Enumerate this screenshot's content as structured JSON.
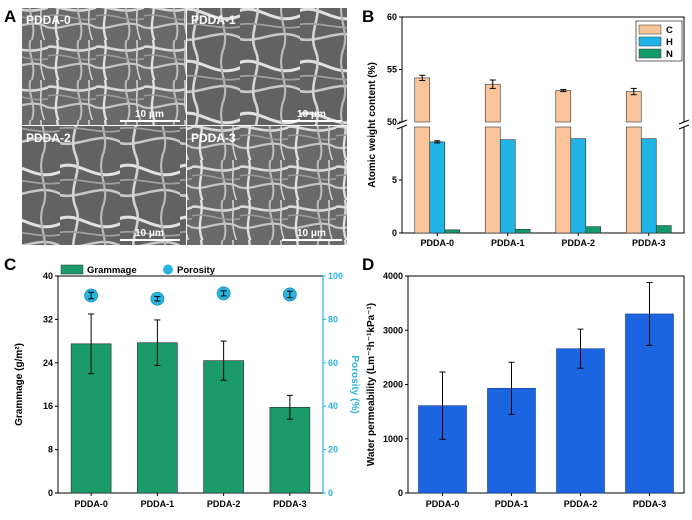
{
  "panels": {
    "A": "A",
    "B": "B",
    "C": "C",
    "D": "D"
  },
  "sem": {
    "images": [
      {
        "label": "PDDA-0",
        "scale": "10 μm"
      },
      {
        "label": "PDDA-1",
        "scale": "10 μm"
      },
      {
        "label": "PDDA-2",
        "scale": "10 μm"
      },
      {
        "label": "PDDA-3",
        "scale": "10 μm"
      }
    ]
  },
  "chart_data": [
    {
      "panel": "B",
      "type": "bar",
      "categories": [
        "PDDA-0",
        "PDDA-1",
        "PDDA-2",
        "PDDA-3"
      ],
      "ylabel": "Atomic weight content (%)",
      "axis_break": true,
      "ylim_lower": [
        0,
        10
      ],
      "ylim_upper": [
        50,
        60
      ],
      "yticks_lower": [
        "0",
        "5"
      ],
      "yticks_upper": [
        "50",
        "55",
        "60"
      ],
      "series": [
        {
          "name": "C",
          "color": "#f9c49a",
          "values": [
            54.2,
            53.6,
            53.0,
            52.9
          ],
          "errors": [
            0.25,
            0.4,
            0.1,
            0.3
          ]
        },
        {
          "name": "H",
          "color": "#1fb3e6",
          "values": [
            8.6,
            8.8,
            8.9,
            8.9
          ],
          "errors": [
            0.1,
            0.0,
            0.0,
            0.0
          ]
        },
        {
          "name": "N",
          "color": "#129a6a",
          "values": [
            0.3,
            0.35,
            0.6,
            0.7
          ],
          "errors": [
            0,
            0,
            0,
            0
          ]
        }
      ],
      "legend_position": "top-right"
    },
    {
      "panel": "C",
      "type": "bar",
      "categories": [
        "PDDA-0",
        "PDDA-1",
        "PDDA-2",
        "PDDA-3"
      ],
      "ylabel": "Grammage (g/m²)",
      "ylabel_right": "Porosity (%)",
      "ylim": [
        0,
        40
      ],
      "ylim_right": [
        0,
        100
      ],
      "yticks": [
        "0",
        "8",
        "16",
        "24",
        "32",
        "40"
      ],
      "yticks_right": [
        "0",
        "20",
        "40",
        "60",
        "80",
        "100"
      ],
      "right_axis_color": "#29b5e0",
      "series": [
        {
          "name": "Grammage",
          "kind": "bar",
          "color": "#1b9a6a",
          "values": [
            27.5,
            27.7,
            24.4,
            15.8
          ],
          "errors": [
            5.5,
            4.2,
            3.6,
            2.2
          ]
        },
        {
          "name": "Porosity",
          "kind": "scatter",
          "color": "#29b5e0",
          "values": [
            91,
            89.5,
            92,
            91.5
          ],
          "errors": [
            1.5,
            1.0,
            1.2,
            1.5
          ]
        }
      ],
      "legend_position": "top-left"
    },
    {
      "panel": "D",
      "type": "bar",
      "categories": [
        "PDDA-0",
        "PDDA-1",
        "PDDA-2",
        "PDDA-3"
      ],
      "ylabel": "Water permeability (Lm⁻²h⁻¹kPa⁻¹)",
      "ylim": [
        0,
        4000
      ],
      "yticks": [
        "0",
        "1000",
        "2000",
        "3000",
        "4000"
      ],
      "series": [
        {
          "name": "Water permeability",
          "color": "#1b65e0",
          "values": [
            1610,
            1930,
            2660,
            3300
          ],
          "errors": [
            620,
            480,
            360,
            580
          ]
        }
      ]
    }
  ]
}
